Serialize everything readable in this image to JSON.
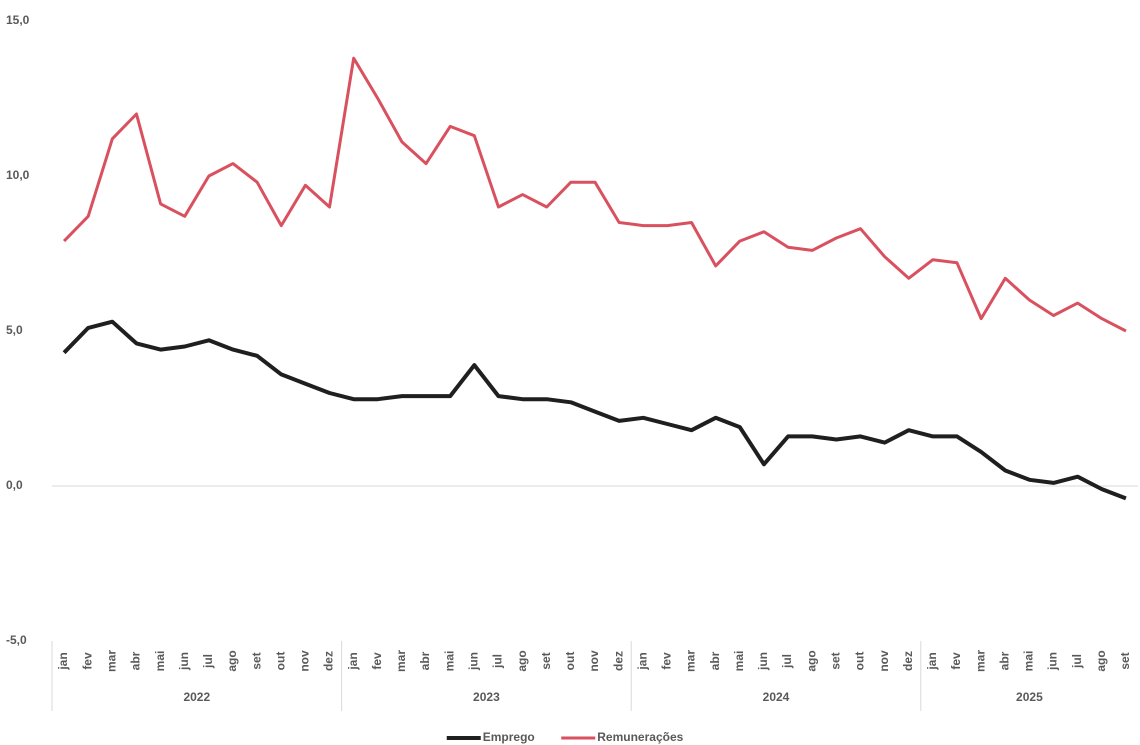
{
  "chart_data": {
    "type": "line",
    "categories": [
      "jan",
      "fev",
      "mar",
      "abr",
      "mai",
      "jun",
      "jul",
      "ago",
      "set",
      "out",
      "nov",
      "dez",
      "jan",
      "fev",
      "mar",
      "abr",
      "mai",
      "jun",
      "jul",
      "ago",
      "set",
      "out",
      "nov",
      "dez",
      "jan",
      "fev",
      "mar",
      "abr",
      "mai",
      "jun",
      "jul",
      "ago",
      "set",
      "out",
      "nov",
      "dez",
      "jan",
      "fev",
      "mar",
      "abr",
      "mai",
      "jun",
      "jul",
      "ago",
      "set"
    ],
    "category_groups": [
      "2022",
      "2023",
      "2024",
      "2025"
    ],
    "series": [
      {
        "name": "Emprego",
        "color": "#1f1f1f",
        "values": [
          4.3,
          5.1,
          5.3,
          4.6,
          4.4,
          4.5,
          4.7,
          4.4,
          4.2,
          3.6,
          3.3,
          3.0,
          2.8,
          2.8,
          2.9,
          2.9,
          2.9,
          3.9,
          2.9,
          2.8,
          2.8,
          2.7,
          2.4,
          2.1,
          2.2,
          2.0,
          1.8,
          2.2,
          1.9,
          0.7,
          1.6,
          1.6,
          1.5,
          1.6,
          1.4,
          1.8,
          1.6,
          1.6,
          1.1,
          0.5,
          0.2,
          0.1,
          0.3,
          -0.1,
          -0.4
        ]
      },
      {
        "name": "Remunerações",
        "color": "#d9515f",
        "values": [
          7.9,
          8.7,
          11.2,
          12.0,
          9.1,
          8.7,
          10.0,
          10.4,
          9.8,
          8.4,
          9.7,
          9.0,
          13.8,
          12.5,
          11.1,
          10.4,
          11.6,
          11.3,
          9.0,
          9.4,
          9.0,
          9.8,
          9.8,
          8.5,
          8.4,
          8.4,
          8.5,
          7.1,
          7.9,
          8.2,
          7.7,
          7.6,
          8.0,
          8.3,
          7.4,
          6.7,
          7.3,
          7.2,
          5.4,
          6.7,
          6.0,
          5.5,
          5.9,
          5.4,
          5.0
        ]
      }
    ],
    "ylim": [
      -5,
      15
    ],
    "yticks": [
      {
        "value": -5,
        "label": "-5,0"
      },
      {
        "value": 0,
        "label": "0,0"
      },
      {
        "value": 5,
        "label": "5,0"
      },
      {
        "value": 10,
        "label": "10,0"
      },
      {
        "value": 15,
        "label": "15,0"
      }
    ],
    "grid": false,
    "legend": "bottom"
  }
}
